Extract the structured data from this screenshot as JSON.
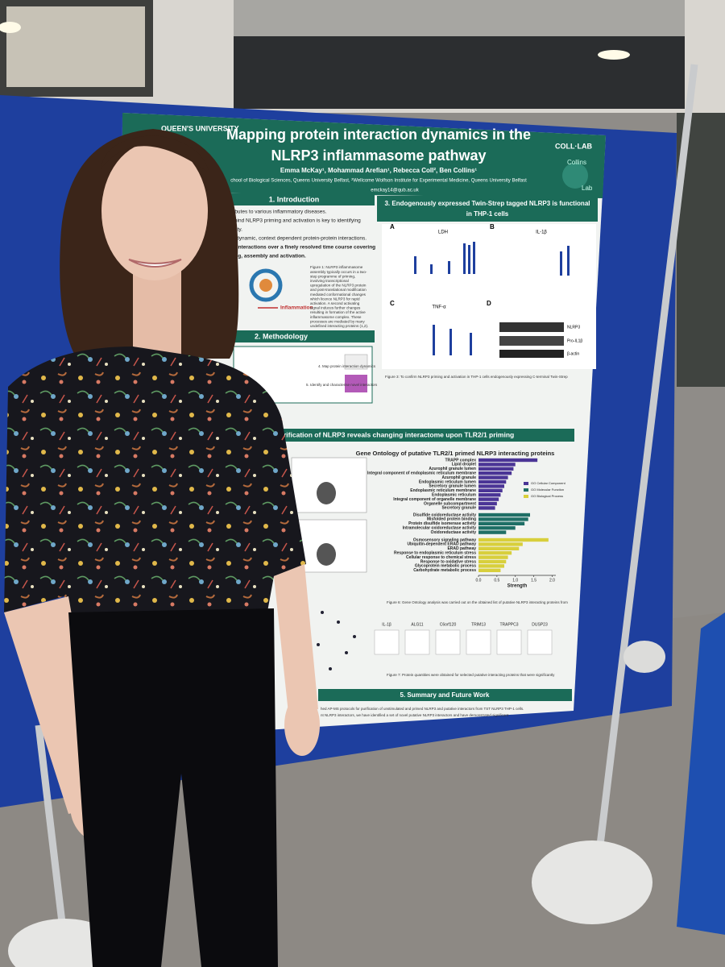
{
  "poster": {
    "logo": "QUEEN'S UNIVERSITY",
    "title_lines": [
      "Mapping protein interaction dynamics in the",
      "NLRP3 inflammasome pathway"
    ],
    "lab_logo": "COLL·LAB",
    "lab_name": [
      "Collins",
      "Lab"
    ],
    "authors": "Emma McKay¹, Mohammad Arefian¹, Rebecca Coll², Ben Collins¹",
    "affiliation": "chool of Biological Sciences, Queens University Belfast, ²Wellcome Wolfson Institute for Experimental Medicine, Queens University Belfast",
    "email": "emckay14@qub.ac.uk",
    "section1": {
      "heading": "1. Introduction",
      "lines": [
        "n contributes to various inflammatory diseases.",
        "sms behind NLRP3 priming and activation is key to identifying",
        "P3 activity.",
        "ated by dynamic, context dependent protein-protein interactions.",
        "protein interactions over a finely resolved time course covering",
        "e priming, assembly and activation."
      ],
      "diagram_label": "Inflammation",
      "caption": [
        "Figure 1: NLRP3 inflammasome",
        "assembly typically occurs in a two-",
        "step programme of priming,",
        "involving transcriptional",
        "upregulation of the NLRP3 protein",
        "and post-translational modification",
        "mediated conformational changes",
        "which licence NLRP3 for rapid",
        "activation. A second activating",
        "signal induces further changes",
        "resulting in formation of the active",
        "inflammasome complex. These",
        "processes are mediated by many",
        "undefined interacting proteins (1,2)."
      ]
    },
    "section2": {
      "heading": "2. Methodology",
      "steps": [
        "4. Map protein interaction dynamics",
        "5. Identify and characterise novel interactors"
      ]
    },
    "section3": {
      "heading": [
        "3. Endogenously expressed Twin-Strep tagged NLRP3 is functional",
        "in THP-1 cells"
      ],
      "panels": [
        "A",
        "B",
        "C",
        "D"
      ],
      "chart_titles": [
        "LDH",
        "IL-1β",
        "TNF-α"
      ],
      "blot_labels": [
        "NLRP3",
        "Pro-IL1β",
        "β-actin"
      ],
      "caption": "Figure 3: To confirm NLRP3 priming and activation in THP-1 cells endogenously expressing C-terminal Twin-Strep"
    },
    "section4": {
      "heading": "rification of NLRP3 reveals changing interactome upon TLR2/1 priming",
      "chart_heading": "Gene Ontology of putative TLR2/1 primed NLRP3 interacting proteins",
      "small_charts": [
        "IL-1β",
        "ALG11",
        "C6orf120",
        "TRIM13",
        "TRAPPC3",
        "DUSP23"
      ],
      "caption6": "Figure 6: Gene Ontology analysis was carried out on the obtained list of putative NLRP3 interacting proteins from",
      "caption7": "Figure 7: Protein quantities were obtained for selected putative interacting proteins that were significantly"
    },
    "section5": {
      "heading": "5. Summary and Future Work",
      "lines": [
        "hed AP-MS protocols for purification of unstimulated and primed NLRP3 and putative interactors from TST NLRP3 THP-1 cells.",
        "nt NLRP3 interactors, we have identified a set of novel putative NLRP3 interactors and have demonstrated significant"
      ]
    }
  },
  "go_chart": {
    "type": "bar",
    "orientation": "horizontal",
    "x_label": "Strength",
    "xlim": [
      0,
      2.1
    ],
    "xticks": [
      {
        "value": 0,
        "label": "0.0"
      },
      {
        "value": 0.5,
        "label": "0.5"
      },
      {
        "value": 1,
        "label": "1.0"
      },
      {
        "value": 1.5,
        "label": "1.5"
      },
      {
        "value": 2,
        "label": "2.0"
      }
    ],
    "groups": [
      {
        "name": "GO Cellular Component",
        "color": "#4b3596",
        "categories": [
          "TRAPP complex",
          "Lipid droplet",
          "Azurophil granule lumen",
          "Integral component of endoplasmic reticulum membrane",
          "Azurophil granule",
          "Endoplasmic reticulum lumen",
          "Secretory granule lumen",
          "Endoplasmic reticulum membrane",
          "Endoplasmic reticulum",
          "Integral component of organelle membrane",
          "Organelle subcompartment",
          "Secretory granule"
        ],
        "values": [
          1.6,
          1.0,
          0.95,
          0.9,
          0.8,
          0.75,
          0.7,
          0.65,
          0.6,
          0.55,
          0.5,
          0.45
        ]
      },
      {
        "name": "GO Molecular Function",
        "color": "#1f6f66",
        "categories": [
          "Disulfide oxidoreductase activity",
          "Misfolded protein binding",
          "Protein disulfide isomerase activity",
          "Intramolecular oxidoreductase activity",
          "Oxidoreductase activity"
        ],
        "values": [
          1.4,
          1.35,
          1.25,
          1.0,
          0.75
        ]
      },
      {
        "name": "GO Biological Process",
        "color": "#d8cf3c",
        "categories": [
          "Osmosensory signaling pathway",
          "Ubiquitin-dependent ERAD pathway",
          "ERAD pathway",
          "Response to endoplasmic reticulum stress",
          "Cellular response to chemical stress",
          "Response to oxidative stress",
          "Glycoprotein metabolic process",
          "Carbohydrate metabolic process"
        ],
        "values": [
          1.9,
          1.2,
          1.1,
          0.9,
          0.8,
          0.75,
          0.7,
          0.6
        ]
      }
    ]
  }
}
